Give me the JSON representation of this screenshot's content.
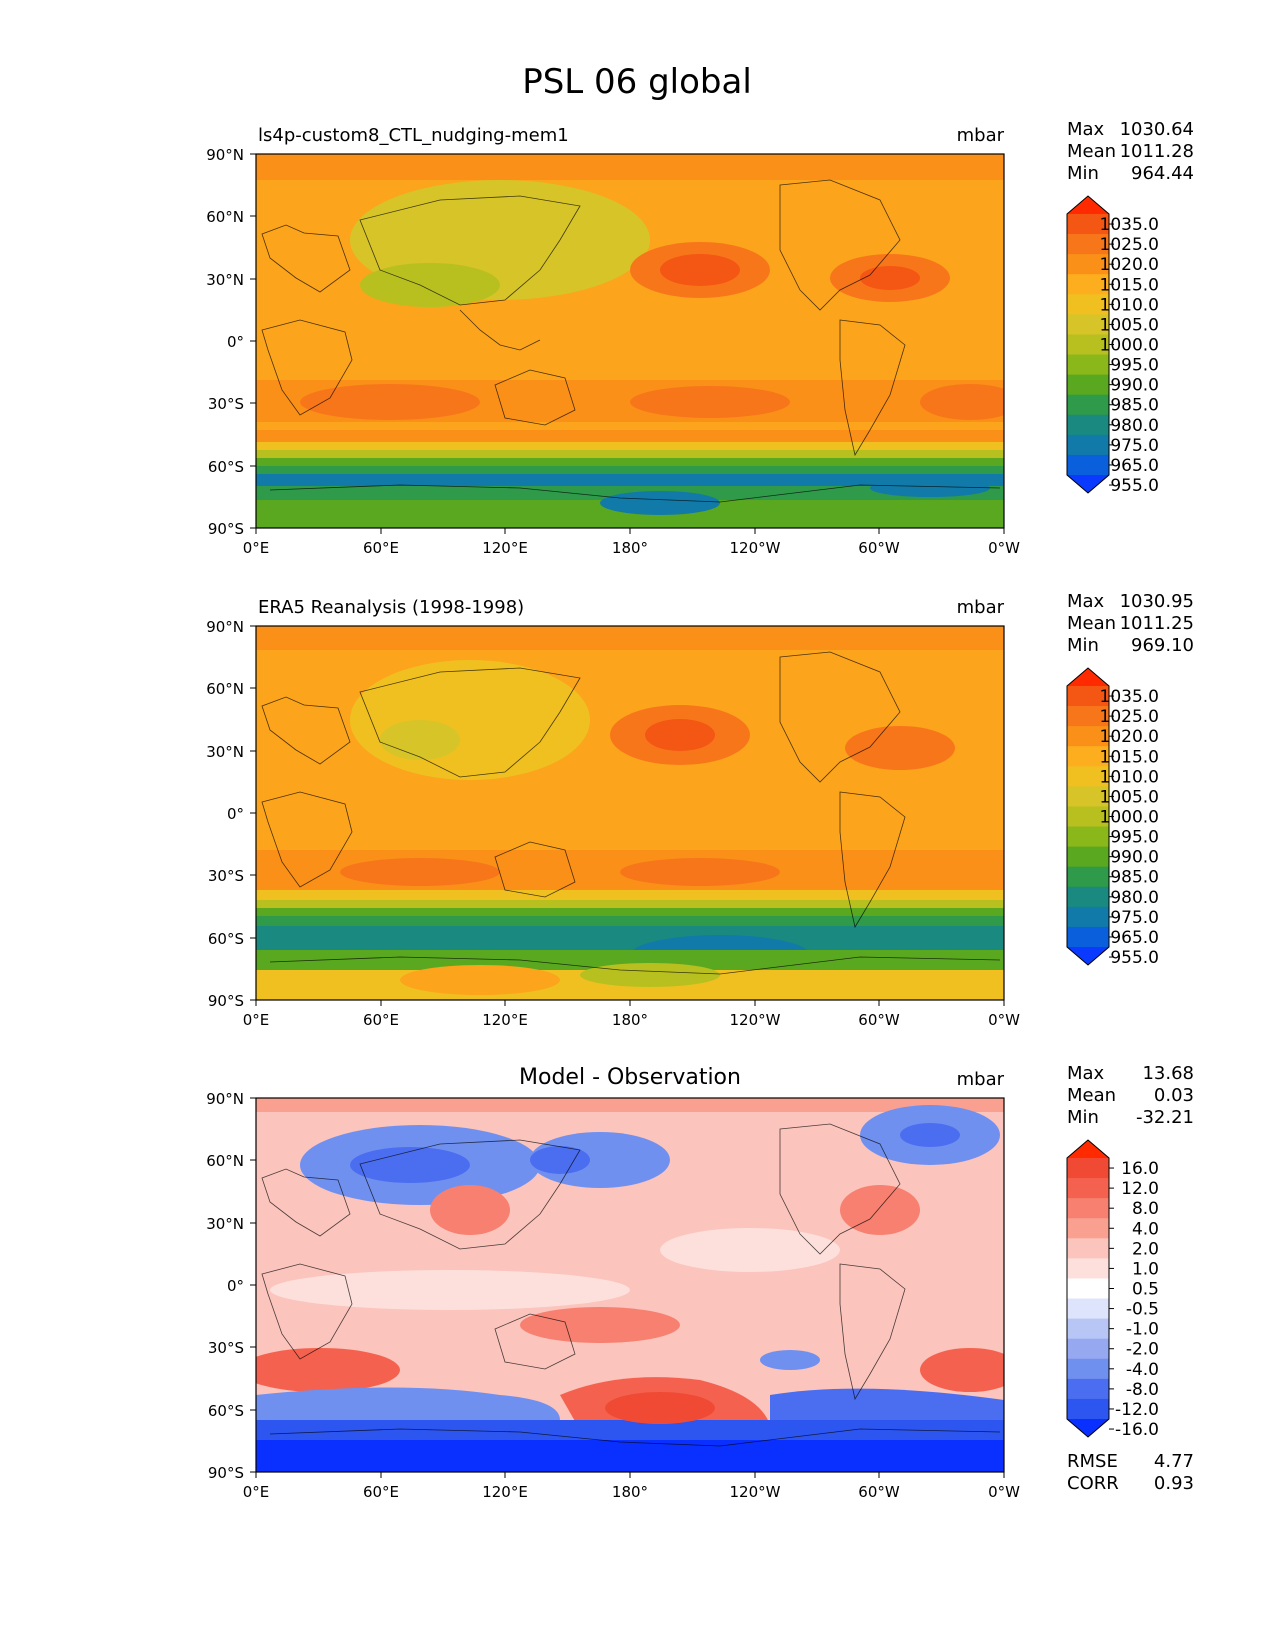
{
  "title": "PSL 06 global",
  "lat_ticks": [
    "90°N",
    "60°N",
    "30°N",
    "0°",
    "30°S",
    "60°S",
    "90°S"
  ],
  "lon_ticks": [
    "0°E",
    "60°E",
    "120°E",
    "180°",
    "120°W",
    "60°W",
    "0°W"
  ],
  "stat_labels": {
    "max": "Max",
    "mean": "Mean",
    "min": "Min",
    "rmse": "RMSE",
    "corr": "CORR"
  },
  "colors": {
    "levels": [
      "#0a3aff",
      "#0a5fdc",
      "#117aa8",
      "#1a8a80",
      "#2e9a4a",
      "#5aa820",
      "#8ab81a",
      "#b8c020",
      "#d6c428",
      "#f0c020",
      "#fcae1e",
      "#fa9018",
      "#f8761a",
      "#f45614",
      "#ff2a00"
    ],
    "diff": [
      "#0a30ff",
      "#2d55f0",
      "#4b6ef0",
      "#7090f0",
      "#95a8f0",
      "#b8c6f5",
      "#dde4fb",
      "#ffffff",
      "#fde0dc",
      "#fbc4bc",
      "#f9a090",
      "#f78070",
      "#f4624f",
      "#f04a35",
      "#ff2a00"
    ]
  },
  "panels": [
    {
      "id": "model",
      "left_title": "ls4p-custom8_CTL_nudging-mem1",
      "center_title": "",
      "units": "mbar",
      "stats": {
        "max": "1030.64",
        "mean": "1011.28",
        "min": "964.44"
      },
      "colorbar_ticks": [
        "1035.0",
        "1025.0",
        "1020.0",
        "1015.0",
        "1010.0",
        "1005.0",
        "1000.0",
        "995.0",
        "990.0",
        "985.0",
        "980.0",
        "975.0",
        "965.0",
        "955.0"
      ],
      "colorbar_type": "abs"
    },
    {
      "id": "obs",
      "left_title": "ERA5 Reanalysis (1998-1998)",
      "center_title": "",
      "units": "mbar",
      "stats": {
        "max": "1030.95",
        "mean": "1011.25",
        "min": "969.10"
      },
      "colorbar_ticks": [
        "1035.0",
        "1025.0",
        "1020.0",
        "1015.0",
        "1010.0",
        "1005.0",
        "1000.0",
        "995.0",
        "990.0",
        "985.0",
        "980.0",
        "975.0",
        "965.0",
        "955.0"
      ],
      "colorbar_type": "abs"
    },
    {
      "id": "diff",
      "left_title": "",
      "center_title": "Model - Observation",
      "units": "mbar",
      "stats": {
        "max": "13.68",
        "mean": "0.03",
        "min": "-32.21"
      },
      "colorbar_ticks": [
        "16.0",
        "12.0",
        "8.0",
        "4.0",
        "2.0",
        "1.0",
        "0.5",
        "-0.5",
        "-1.0",
        "-2.0",
        "-4.0",
        "-8.0",
        "-12.0",
        "-16.0"
      ],
      "colorbar_type": "diff",
      "metrics": {
        "rmse": "4.77",
        "corr": "0.93"
      }
    }
  ]
}
